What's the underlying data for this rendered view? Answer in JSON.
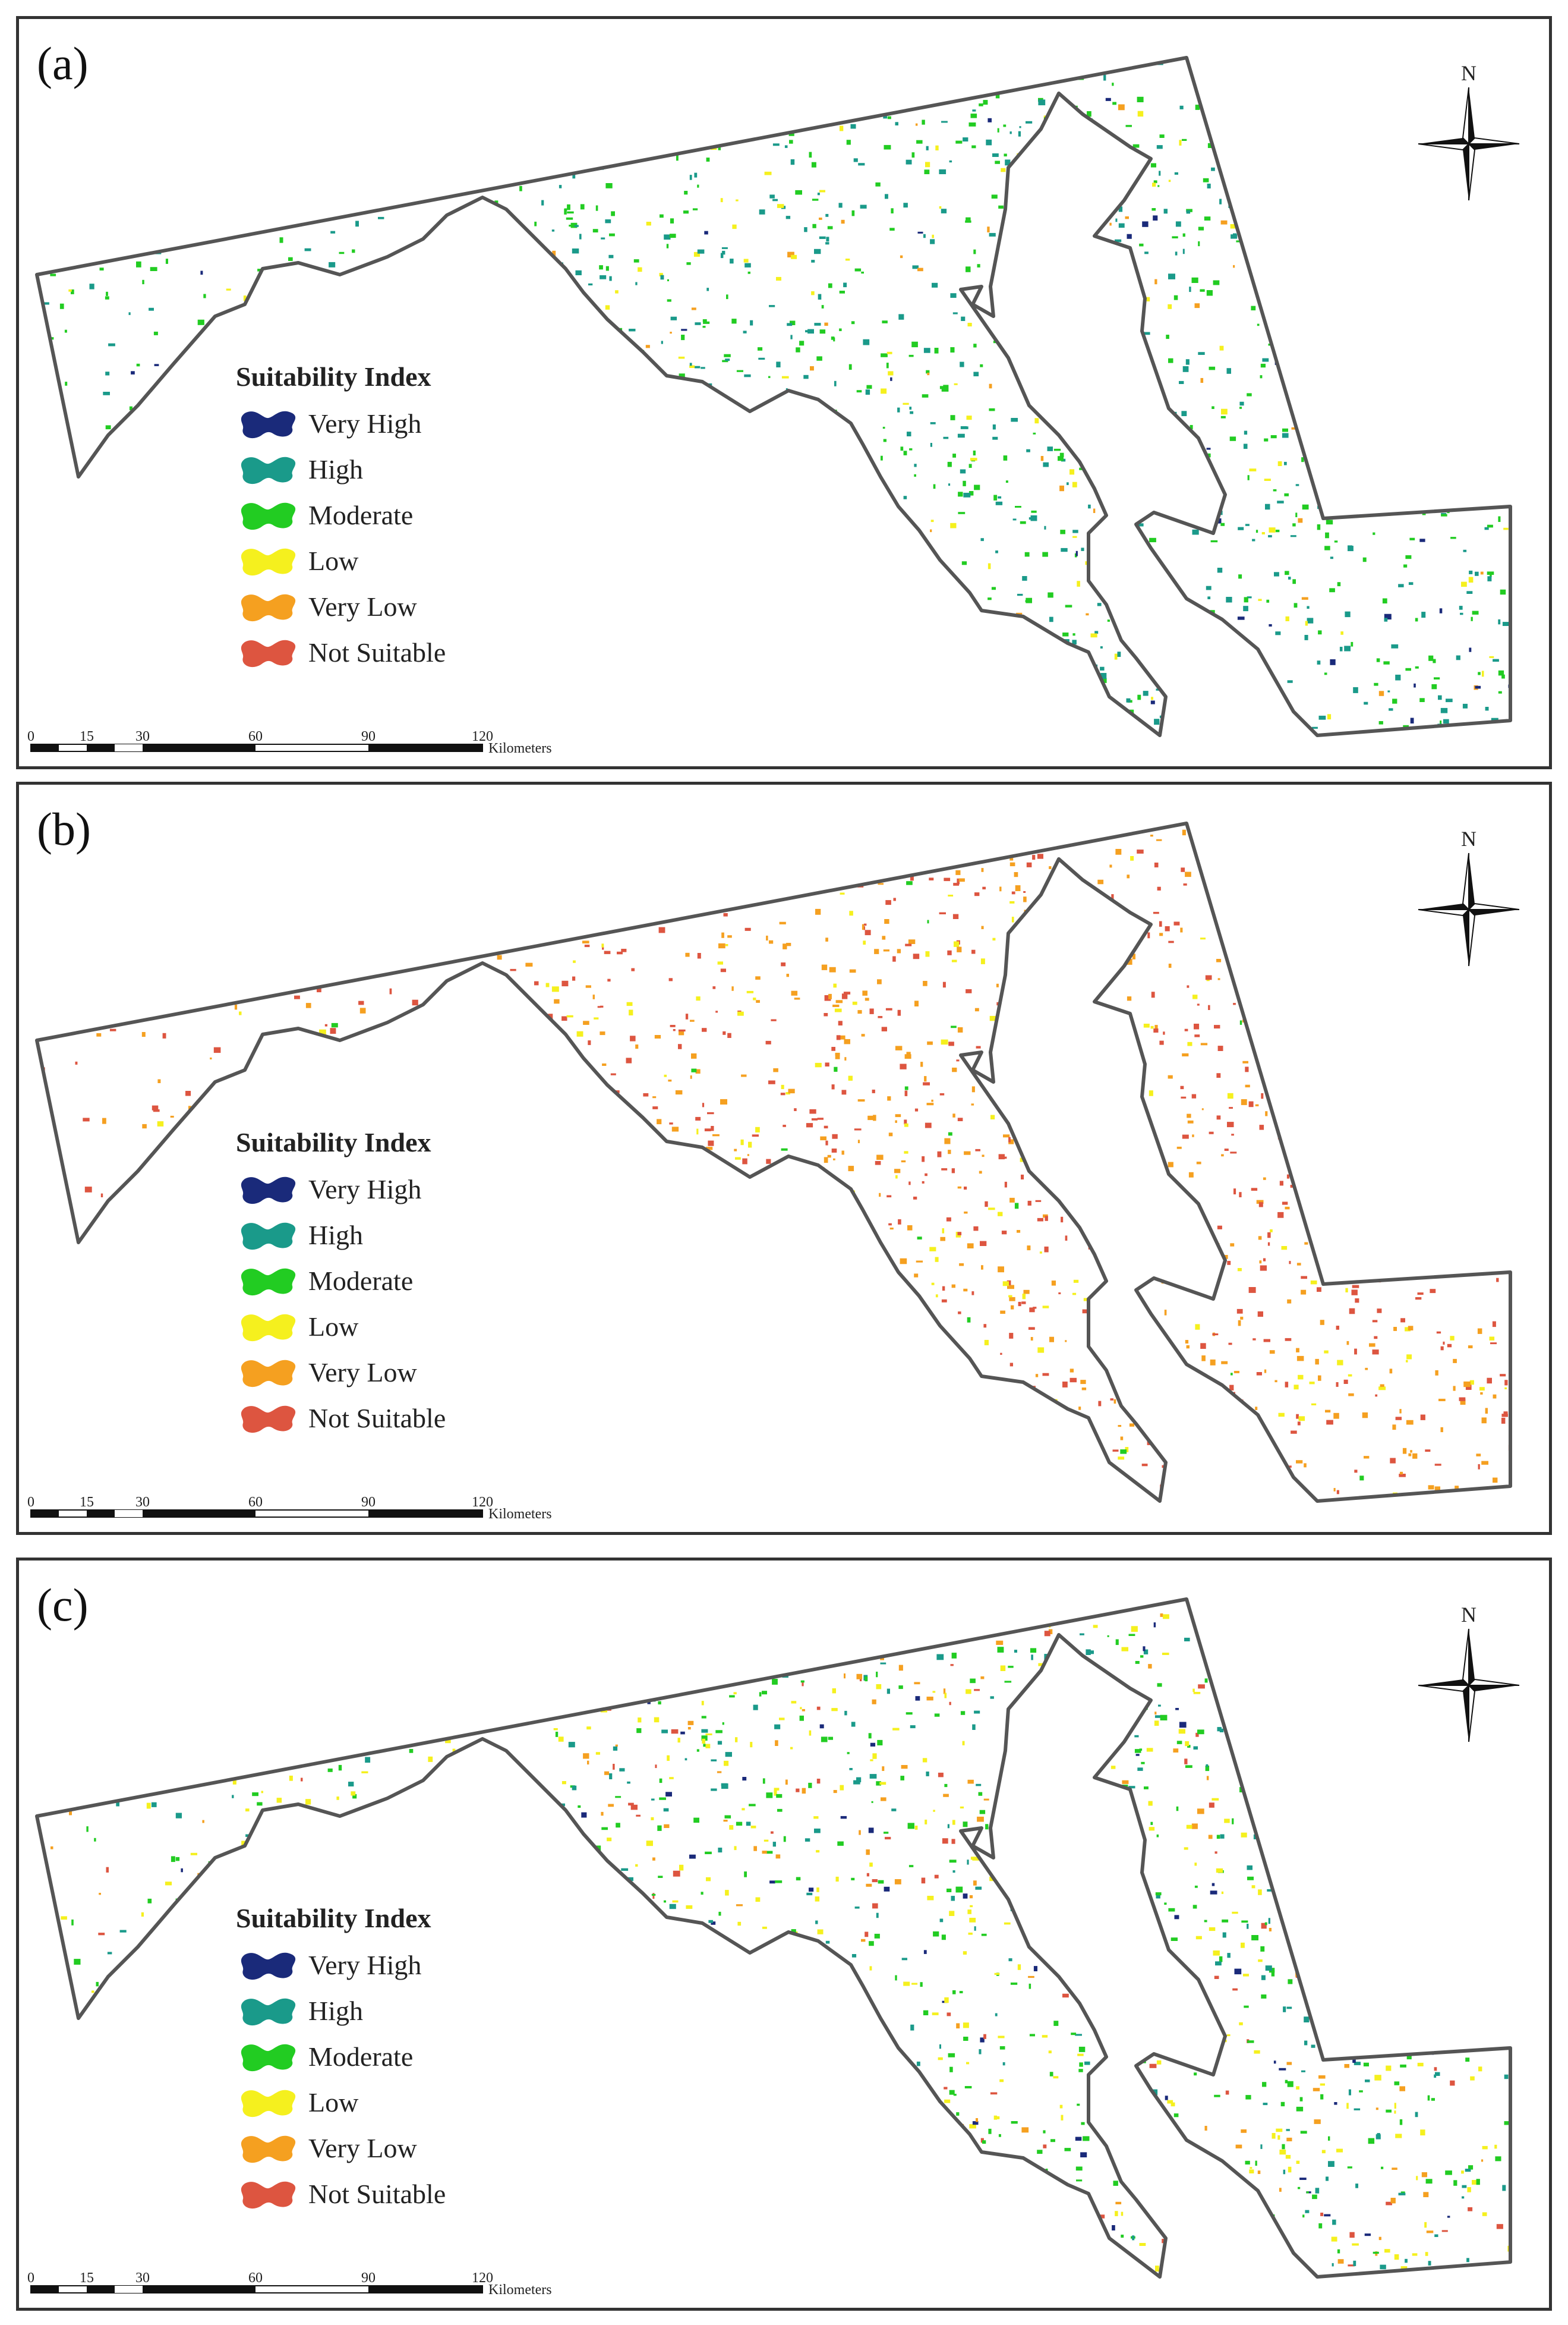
{
  "panels": [
    {
      "label": "(a)",
      "scenario": "a"
    },
    {
      "label": "(b)",
      "scenario": "b"
    },
    {
      "label": "(c)",
      "scenario": "c"
    }
  ],
  "legend": {
    "title": "Suitability Index",
    "items": [
      {
        "label": "Very High",
        "color": "#1a2a7a"
      },
      {
        "label": "High",
        "color": "#1a9a8a"
      },
      {
        "label": "Moderate",
        "color": "#22cc22"
      },
      {
        "label": "Low",
        "color": "#f5f01e"
      },
      {
        "label": "Very Low",
        "color": "#f5a020"
      },
      {
        "label": "Not Suitable",
        "color": "#dd5540"
      }
    ]
  },
  "north_arrow": {
    "letter": "N"
  },
  "scale_bar": {
    "ticks": [
      "0",
      "15",
      "30",
      "60",
      "90",
      "120"
    ],
    "unit": "Kilometers"
  }
}
